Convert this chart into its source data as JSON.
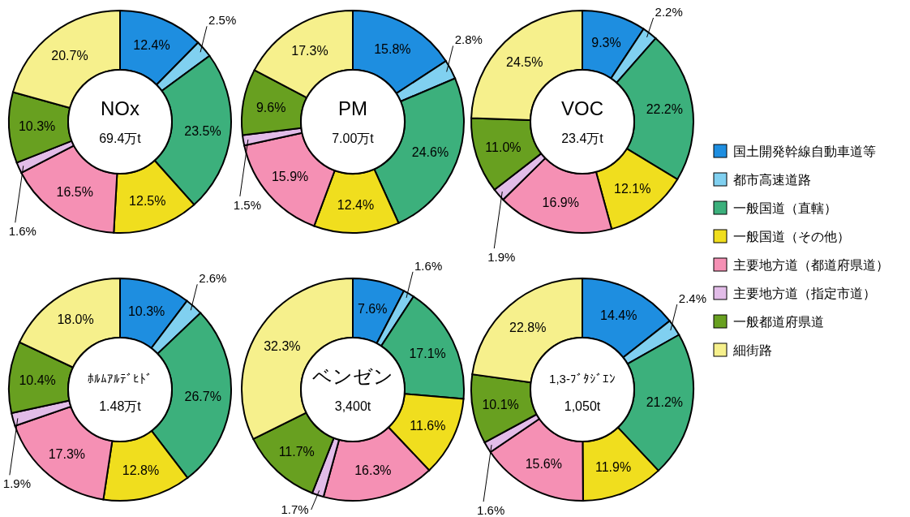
{
  "chart_data": [
    {
      "type": "donut",
      "title": "NOx",
      "subtitle": "69.4万t",
      "legend": "right",
      "categories": [
        "国土開発幹線自動車道等",
        "都市高速道路",
        "一般国道（直轄）",
        "一般国道（その他）",
        "主要地方道（都道府県道）",
        "主要地方道（指定市道）",
        "一般都道府県道",
        "細街路"
      ],
      "colors": [
        "#1e8ee0",
        "#80d0f0",
        "#3cb07c",
        "#f0de1e",
        "#f590b4",
        "#e2bce8",
        "#68a020",
        "#f6f08c"
      ],
      "values": [
        12.4,
        2.5,
        23.5,
        12.5,
        16.5,
        1.6,
        10.3,
        20.7
      ],
      "value_labels": [
        "12.4%",
        "2.5%",
        "23.5%",
        "12.5%",
        "16.5%",
        "1.6%",
        "10.3%",
        "20.7%"
      ]
    },
    {
      "type": "donut",
      "title": "PM",
      "subtitle": "7.00万t",
      "categories": [
        null,
        null,
        null,
        null,
        null,
        null,
        null,
        null
      ],
      "colors": [
        "#1e8ee0",
        "#80d0f0",
        "#3cb07c",
        "#f0de1e",
        "#f590b4",
        "#e2bce8",
        "#68a020",
        "#f6f08c"
      ],
      "values": [
        15.8,
        2.8,
        24.6,
        12.4,
        15.9,
        1.5,
        9.6,
        17.3
      ],
      "value_labels": [
        "15.8%",
        "2.8%",
        "24.6%",
        "12.4%",
        "15.9%",
        "1.5%",
        "9.6%",
        "17.3%"
      ]
    },
    {
      "type": "donut",
      "title": "VOC",
      "subtitle": "23.4万t",
      "categories": [
        null,
        null,
        null,
        null,
        null,
        null,
        null,
        null
      ],
      "colors": [
        "#1e8ee0",
        "#80d0f0",
        "#3cb07c",
        "#f0de1e",
        "#f590b4",
        "#e2bce8",
        "#68a020",
        "#f6f08c"
      ],
      "values": [
        9.3,
        2.2,
        22.2,
        12.1,
        16.9,
        1.9,
        11.0,
        24.5
      ],
      "value_labels": [
        "9.3%",
        "2.2%",
        "22.2%",
        "12.1%",
        "16.9%",
        "1.9%",
        "11.0%",
        "24.5%"
      ]
    },
    {
      "type": "donut",
      "title": "ﾎﾙﾑｱﾙﾃﾞﾋﾄﾞ",
      "subtitle": "1.48万t",
      "categories": [
        null,
        null,
        null,
        null,
        null,
        null,
        null,
        null
      ],
      "colors": [
        "#1e8ee0",
        "#80d0f0",
        "#3cb07c",
        "#f0de1e",
        "#f590b4",
        "#e2bce8",
        "#68a020",
        "#f6f08c"
      ],
      "values": [
        10.3,
        2.6,
        26.7,
        12.8,
        17.3,
        1.9,
        10.4,
        18.0
      ],
      "value_labels": [
        "10.3%",
        "2.6%",
        "26.7%",
        "12.8%",
        "17.3%",
        "1.9%",
        "10.4%",
        "18.0%"
      ]
    },
    {
      "type": "donut",
      "title": "ベンゼン",
      "subtitle": "3,400t",
      "categories": [
        null,
        null,
        null,
        null,
        null,
        null,
        null,
        null
      ],
      "colors": [
        "#1e8ee0",
        "#80d0f0",
        "#3cb07c",
        "#f0de1e",
        "#f590b4",
        "#e2bce8",
        "#68a020",
        "#f6f08c"
      ],
      "values": [
        7.6,
        1.6,
        17.1,
        11.6,
        16.3,
        1.7,
        11.7,
        32.3
      ],
      "value_labels": [
        "7.6%",
        "1.6%",
        "17.1%",
        "11.6%",
        "16.3%",
        "1.7%",
        "11.7%",
        "32.3%"
      ]
    },
    {
      "type": "donut",
      "title": "1,3-ﾌﾞﾀｼﾞｴﾝ",
      "subtitle": "1,050t",
      "categories": [
        null,
        null,
        null,
        null,
        null,
        null,
        null,
        null
      ],
      "colors": [
        "#1e8ee0",
        "#80d0f0",
        "#3cb07c",
        "#f0de1e",
        "#f590b4",
        "#e2bce8",
        "#68a020",
        "#f6f08c"
      ],
      "values": [
        14.4,
        2.4,
        21.2,
        11.9,
        15.6,
        1.6,
        10.1,
        22.8
      ],
      "value_labels": [
        "14.4%",
        "2.4%",
        "21.2%",
        "11.9%",
        "15.6%",
        "1.6%",
        "10.1%",
        "22.8%"
      ]
    }
  ]
}
